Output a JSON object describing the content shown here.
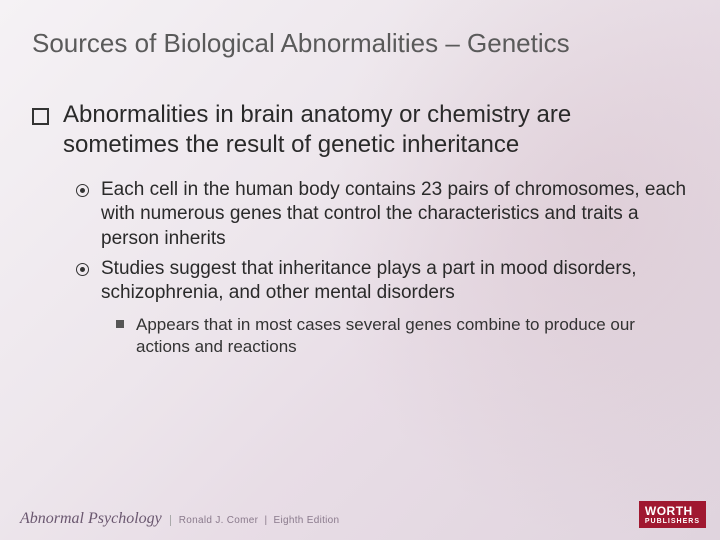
{
  "title": "Sources of Biological Abnormalities – Genetics",
  "level1": {
    "text": "Abnormalities in brain anatomy or chemistry are sometimes the result of genetic inheritance"
  },
  "level2": [
    {
      "text": "Each cell in the human body contains 23 pairs of chromosomes, each with numerous genes that control the characteristics and traits a person inherits"
    },
    {
      "text": "Studies suggest that inheritance plays a part in mood disorders, schizophrenia, and other mental disorders"
    }
  ],
  "level3": [
    {
      "text": "Appears that in most cases several genes combine to produce our actions and reactions"
    }
  ],
  "footer": {
    "book_title": "Abnormal Psychology",
    "author": "Ronald J. Comer",
    "edition": "Eighth Edition",
    "publisher_line1": "WORTH",
    "publisher_line2": "PUBLISHERS"
  },
  "colors": {
    "title_color": "#5a5a5a",
    "body_color": "#2a2a2a",
    "publisher_bg": "#a01830",
    "book_title_color": "#6b5870"
  }
}
